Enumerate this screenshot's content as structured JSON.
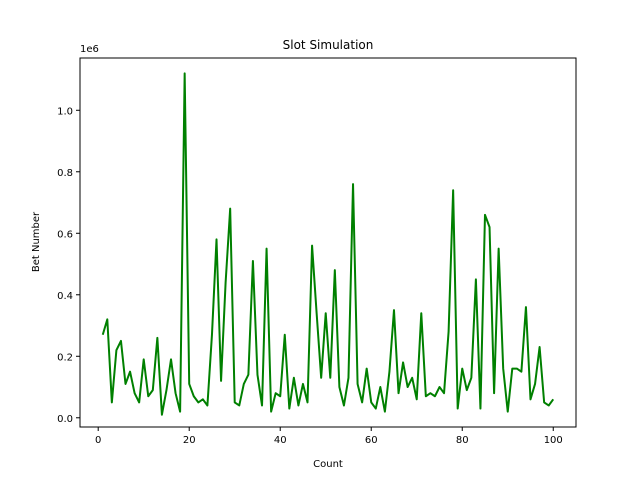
{
  "chart_data": {
    "type": "line",
    "title": "Slot Simulation",
    "xlabel": "Count",
    "ylabel": "Bet Number",
    "y_scale_label": "1e6",
    "xlim": [
      -4,
      105
    ],
    "ylim": [
      -0.03,
      1.17
    ],
    "x_ticks": [
      0,
      20,
      40,
      60,
      80,
      100
    ],
    "y_ticks": [
      0.0,
      0.2,
      0.4,
      0.6,
      0.8,
      1.0
    ],
    "y_tick_labels": [
      "0.0",
      "0.2",
      "0.4",
      "0.6",
      "0.8",
      "1.0"
    ],
    "grid": false,
    "series": [
      {
        "color": "#008000",
        "x": [
          1,
          2,
          3,
          4,
          5,
          6,
          7,
          8,
          9,
          10,
          11,
          12,
          13,
          14,
          15,
          16,
          17,
          18,
          19,
          20,
          21,
          22,
          23,
          24,
          25,
          26,
          27,
          28,
          29,
          30,
          31,
          32,
          33,
          34,
          35,
          36,
          37,
          38,
          39,
          40,
          41,
          42,
          43,
          44,
          45,
          46,
          47,
          48,
          49,
          50,
          51,
          52,
          53,
          54,
          55,
          56,
          57,
          58,
          59,
          60,
          61,
          62,
          63,
          64,
          65,
          66,
          67,
          68,
          69,
          70,
          71,
          72,
          73,
          74,
          75,
          76,
          77,
          78,
          79,
          80,
          81,
          82,
          83,
          84,
          85,
          86,
          87,
          88,
          89,
          90,
          91,
          92,
          93,
          94,
          95,
          96,
          97,
          98,
          99,
          100
        ],
        "y": [
          0.27,
          0.32,
          0.05,
          0.22,
          0.25,
          0.11,
          0.15,
          0.08,
          0.05,
          0.19,
          0.07,
          0.09,
          0.26,
          0.01,
          0.09,
          0.19,
          0.08,
          0.02,
          1.12,
          0.11,
          0.07,
          0.05,
          0.06,
          0.04,
          0.27,
          0.58,
          0.12,
          0.44,
          0.68,
          0.05,
          0.04,
          0.11,
          0.14,
          0.51,
          0.14,
          0.04,
          0.55,
          0.02,
          0.08,
          0.07,
          0.27,
          0.03,
          0.13,
          0.04,
          0.11,
          0.05,
          0.56,
          0.34,
          0.13,
          0.34,
          0.13,
          0.48,
          0.1,
          0.04,
          0.13,
          0.76,
          0.11,
          0.05,
          0.16,
          0.05,
          0.03,
          0.1,
          0.02,
          0.15,
          0.35,
          0.08,
          0.18,
          0.1,
          0.13,
          0.06,
          0.34,
          0.07,
          0.08,
          0.07,
          0.1,
          0.08,
          0.28,
          0.74,
          0.03,
          0.16,
          0.09,
          0.13,
          0.45,
          0.03,
          0.66,
          0.62,
          0.08,
          0.55,
          0.16,
          0.02,
          0.16,
          0.16,
          0.15,
          0.36,
          0.06,
          0.11,
          0.23,
          0.05,
          0.04,
          0.06
        ]
      }
    ]
  }
}
